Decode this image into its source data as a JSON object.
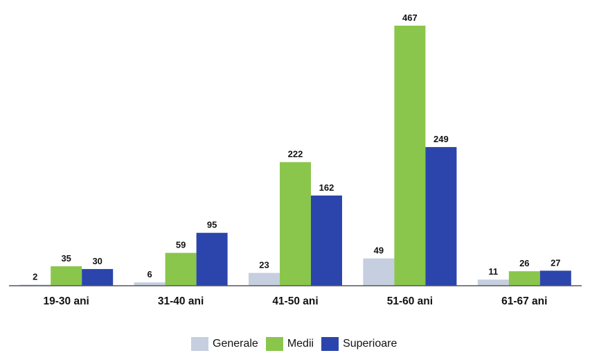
{
  "chart_data": {
    "type": "bar",
    "categories": [
      "19-30 ani",
      "31-40 ani",
      "41-50 ani",
      "51-60 ani",
      "61-67 ani"
    ],
    "series": [
      {
        "name": "Generale",
        "color": "#c5cfdf",
        "values": [
          2,
          6,
          23,
          49,
          11
        ]
      },
      {
        "name": "Medii",
        "color": "#8ac64c",
        "values": [
          35,
          59,
          222,
          467,
          26
        ]
      },
      {
        "name": "Superioare",
        "color": "#2b45ac",
        "values": [
          30,
          95,
          162,
          249,
          27
        ]
      }
    ],
    "ylim": [
      0,
      467
    ],
    "grid": false,
    "legend_position": "bottom"
  }
}
